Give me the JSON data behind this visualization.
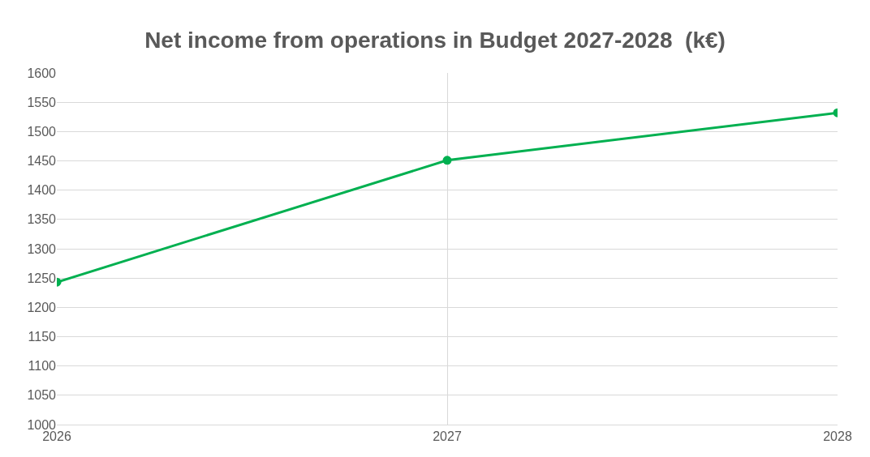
{
  "chart_data": {
    "type": "line",
    "title": "Net income from operations in Budget 2027-2028  (k€)",
    "x": [
      2026,
      2027,
      2028
    ],
    "series": [
      {
        "color": "#00b050",
        "values": [
          1243,
          1451,
          1532
        ]
      }
    ],
    "xlim": [
      2026,
      2028
    ],
    "xticks": [
      2026,
      2027,
      2028
    ],
    "ylim": [
      1000,
      1600
    ],
    "yticks": [
      1000,
      1050,
      1100,
      1150,
      1200,
      1250,
      1300,
      1350,
      1400,
      1450,
      1500,
      1550,
      1600
    ],
    "grid": true,
    "marker": "circle",
    "line_style": "solid"
  }
}
